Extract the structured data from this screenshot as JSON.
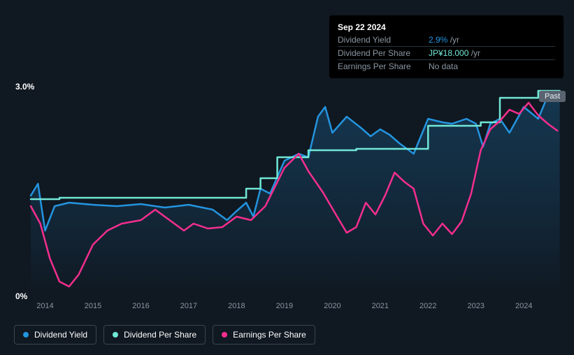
{
  "infoBox": {
    "date": "Sep 22 2024",
    "rows": [
      {
        "label": "Dividend Yield",
        "value": "2.9%",
        "suffix": " /yr",
        "highlightClass": "highlight-blue"
      },
      {
        "label": "Dividend Per Share",
        "value": "JP¥18.000",
        "suffix": " /yr",
        "highlightClass": "highlight-teal"
      },
      {
        "label": "Earnings Per Share",
        "value": "No data",
        "suffix": "",
        "highlightClass": ""
      }
    ]
  },
  "chart": {
    "type": "line",
    "background_color": "#101821",
    "plot_gradient_top": "rgba(35,148,223,0.25)",
    "plot_gradient_mid": "rgba(35,148,223,0.12)",
    "grid_color": "#2a3440",
    "y_axis": {
      "min": 0,
      "max": 3.0,
      "ticks": [
        {
          "value": 0,
          "label": "0%"
        },
        {
          "value": 3.0,
          "label": "3.0%"
        }
      ],
      "label_color": "#ffffff",
      "label_fontsize": 12
    },
    "x_axis": {
      "min": 2013.7,
      "max": 2024.8,
      "ticks": [
        2014,
        2015,
        2016,
        2017,
        2018,
        2019,
        2020,
        2021,
        2022,
        2023,
        2024
      ],
      "label_color": "#8a96a3",
      "label_fontsize": 11
    },
    "series": [
      {
        "name": "Dividend Yield",
        "color": "#2394df",
        "line_width": 2.5,
        "fill": true,
        "data": [
          [
            2013.7,
            1.45
          ],
          [
            2013.85,
            1.62
          ],
          [
            2014.0,
            0.95
          ],
          [
            2014.2,
            1.3
          ],
          [
            2014.5,
            1.35
          ],
          [
            2015.0,
            1.32
          ],
          [
            2015.5,
            1.3
          ],
          [
            2016.0,
            1.33
          ],
          [
            2016.5,
            1.28
          ],
          [
            2017.0,
            1.32
          ],
          [
            2017.5,
            1.25
          ],
          [
            2017.8,
            1.1
          ],
          [
            2018.0,
            1.23
          ],
          [
            2018.2,
            1.35
          ],
          [
            2018.35,
            1.15
          ],
          [
            2018.5,
            1.55
          ],
          [
            2018.7,
            1.48
          ],
          [
            2019.0,
            1.95
          ],
          [
            2019.3,
            2.05
          ],
          [
            2019.5,
            2.0
          ],
          [
            2019.7,
            2.58
          ],
          [
            2019.85,
            2.72
          ],
          [
            2020.0,
            2.35
          ],
          [
            2020.3,
            2.58
          ],
          [
            2020.6,
            2.42
          ],
          [
            2020.8,
            2.3
          ],
          [
            2021.0,
            2.4
          ],
          [
            2021.2,
            2.32
          ],
          [
            2021.4,
            2.2
          ],
          [
            2021.7,
            2.05
          ],
          [
            2022.0,
            2.55
          ],
          [
            2022.3,
            2.5
          ],
          [
            2022.5,
            2.48
          ],
          [
            2022.8,
            2.55
          ],
          [
            2023.0,
            2.48
          ],
          [
            2023.15,
            2.15
          ],
          [
            2023.3,
            2.48
          ],
          [
            2023.5,
            2.55
          ],
          [
            2023.7,
            2.35
          ],
          [
            2024.0,
            2.72
          ],
          [
            2024.3,
            2.55
          ],
          [
            2024.5,
            2.88
          ],
          [
            2024.75,
            2.92
          ]
        ]
      },
      {
        "name": "Dividend Per Share",
        "color": "#71e7d6",
        "line_width": 2.5,
        "fill": false,
        "data": [
          [
            2013.7,
            1.4
          ],
          [
            2014.3,
            1.4
          ],
          [
            2014.3,
            1.42
          ],
          [
            2018.2,
            1.42
          ],
          [
            2018.2,
            1.55
          ],
          [
            2018.5,
            1.55
          ],
          [
            2018.5,
            1.7
          ],
          [
            2018.85,
            1.7
          ],
          [
            2018.85,
            2.0
          ],
          [
            2019.5,
            2.0
          ],
          [
            2019.5,
            2.1
          ],
          [
            2020.5,
            2.1
          ],
          [
            2020.5,
            2.12
          ],
          [
            2022.0,
            2.12
          ],
          [
            2022.0,
            2.45
          ],
          [
            2023.1,
            2.45
          ],
          [
            2023.1,
            2.5
          ],
          [
            2023.5,
            2.5
          ],
          [
            2023.5,
            2.85
          ],
          [
            2024.3,
            2.85
          ],
          [
            2024.3,
            2.95
          ],
          [
            2024.75,
            2.95
          ]
        ]
      },
      {
        "name": "Earnings Per Share",
        "color": "#f42e8e",
        "line_width": 2.5,
        "fill": false,
        "data": [
          [
            2013.7,
            1.3
          ],
          [
            2013.9,
            1.05
          ],
          [
            2014.1,
            0.55
          ],
          [
            2014.3,
            0.22
          ],
          [
            2014.5,
            0.15
          ],
          [
            2014.7,
            0.32
          ],
          [
            2015.0,
            0.75
          ],
          [
            2015.3,
            0.95
          ],
          [
            2015.6,
            1.05
          ],
          [
            2016.0,
            1.1
          ],
          [
            2016.3,
            1.25
          ],
          [
            2016.6,
            1.1
          ],
          [
            2016.9,
            0.95
          ],
          [
            2017.1,
            1.05
          ],
          [
            2017.4,
            0.98
          ],
          [
            2017.7,
            1.0
          ],
          [
            2018.0,
            1.15
          ],
          [
            2018.3,
            1.1
          ],
          [
            2018.6,
            1.3
          ],
          [
            2019.0,
            1.85
          ],
          [
            2019.3,
            2.05
          ],
          [
            2019.5,
            1.8
          ],
          [
            2019.8,
            1.5
          ],
          [
            2020.1,
            1.15
          ],
          [
            2020.3,
            0.92
          ],
          [
            2020.5,
            1.0
          ],
          [
            2020.7,
            1.35
          ],
          [
            2020.9,
            1.18
          ],
          [
            2021.1,
            1.45
          ],
          [
            2021.3,
            1.78
          ],
          [
            2021.5,
            1.65
          ],
          [
            2021.7,
            1.55
          ],
          [
            2021.9,
            1.05
          ],
          [
            2022.1,
            0.88
          ],
          [
            2022.3,
            1.05
          ],
          [
            2022.5,
            0.9
          ],
          [
            2022.7,
            1.08
          ],
          [
            2022.9,
            1.48
          ],
          [
            2023.1,
            2.1
          ],
          [
            2023.3,
            2.4
          ],
          [
            2023.5,
            2.52
          ],
          [
            2023.7,
            2.68
          ],
          [
            2023.9,
            2.62
          ],
          [
            2024.1,
            2.78
          ],
          [
            2024.3,
            2.6
          ],
          [
            2024.5,
            2.48
          ],
          [
            2024.7,
            2.38
          ]
        ]
      }
    ],
    "past_label": "Past"
  },
  "legend": {
    "items": [
      {
        "label": "Dividend Yield",
        "color": "#2394df"
      },
      {
        "label": "Dividend Per Share",
        "color": "#71e7d6"
      },
      {
        "label": "Earnings Per Share",
        "color": "#f42e8e"
      }
    ]
  }
}
